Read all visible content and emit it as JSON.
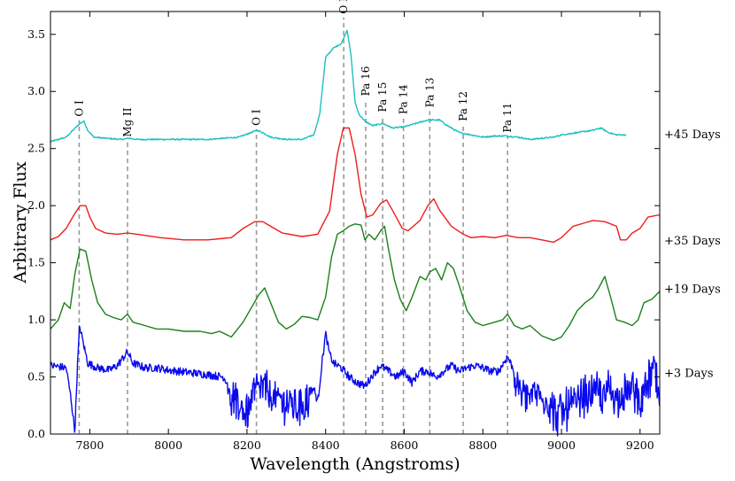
{
  "chart_data": {
    "type": "line",
    "xlabel": "Wavelength (Angstroms)",
    "ylabel": "Arbitrary Flux",
    "xlim": [
      7700,
      9250
    ],
    "ylim": [
      0.0,
      3.7
    ],
    "x_ticks": [
      7800,
      8000,
      8200,
      8400,
      8600,
      8800,
      9000,
      9200
    ],
    "y_ticks": [
      "0.0",
      "0.5",
      "1.0",
      "1.5",
      "2.0",
      "2.5",
      "3.0",
      "3.5"
    ],
    "line_markers": [
      {
        "label": "O I",
        "x": 7773,
        "label_y": 2.78
      },
      {
        "label": "Mg II",
        "x": 7896,
        "label_y": 2.6
      },
      {
        "label": "O I",
        "x": 8224,
        "label_y": 2.7
      },
      {
        "label": "O I",
        "x": 8446,
        "label_y": 3.68
      },
      {
        "label": "Pa 16",
        "x": 8502,
        "label_y": 2.96
      },
      {
        "label": "Pa 15",
        "x": 8545,
        "label_y": 2.82
      },
      {
        "label": "Pa 14",
        "x": 8598,
        "label_y": 2.8
      },
      {
        "label": "Pa 13",
        "x": 8665,
        "label_y": 2.86
      },
      {
        "label": "Pa 12",
        "x": 8750,
        "label_y": 2.74
      },
      {
        "label": "Pa 11",
        "x": 8863,
        "label_y": 2.64
      }
    ],
    "series": [
      {
        "name": "+45 Days",
        "color": "#1ec0c0",
        "label_y": 2.62,
        "noise": 0.006,
        "x_end": 9165,
        "points": [
          [
            7700,
            2.56
          ],
          [
            7720,
            2.58
          ],
          [
            7740,
            2.6
          ],
          [
            7760,
            2.67
          ],
          [
            7775,
            2.72
          ],
          [
            7785,
            2.74
          ],
          [
            7795,
            2.66
          ],
          [
            7810,
            2.6
          ],
          [
            7840,
            2.59
          ],
          [
            7880,
            2.58
          ],
          [
            7900,
            2.59
          ],
          [
            7920,
            2.58
          ],
          [
            8000,
            2.58
          ],
          [
            8100,
            2.58
          ],
          [
            8180,
            2.6
          ],
          [
            8210,
            2.64
          ],
          [
            8225,
            2.66
          ],
          [
            8240,
            2.64
          ],
          [
            8260,
            2.6
          ],
          [
            8300,
            2.58
          ],
          [
            8340,
            2.58
          ],
          [
            8370,
            2.62
          ],
          [
            8385,
            2.8
          ],
          [
            8400,
            3.3
          ],
          [
            8420,
            3.38
          ],
          [
            8440,
            3.42
          ],
          [
            8455,
            3.54
          ],
          [
            8465,
            3.3
          ],
          [
            8475,
            2.9
          ],
          [
            8485,
            2.8
          ],
          [
            8500,
            2.74
          ],
          [
            8520,
            2.7
          ],
          [
            8545,
            2.72
          ],
          [
            8570,
            2.68
          ],
          [
            8600,
            2.69
          ],
          [
            8630,
            2.72
          ],
          [
            8660,
            2.75
          ],
          [
            8690,
            2.75
          ],
          [
            8710,
            2.7
          ],
          [
            8740,
            2.64
          ],
          [
            8770,
            2.62
          ],
          [
            8800,
            2.6
          ],
          [
            8830,
            2.61
          ],
          [
            8860,
            2.61
          ],
          [
            8890,
            2.6
          ],
          [
            8920,
            2.58
          ],
          [
            8950,
            2.59
          ],
          [
            8980,
            2.6
          ],
          [
            9000,
            2.62
          ],
          [
            9040,
            2.64
          ],
          [
            9080,
            2.66
          ],
          [
            9100,
            2.68
          ],
          [
            9120,
            2.64
          ],
          [
            9140,
            2.62
          ],
          [
            9165,
            2.62
          ]
        ]
      },
      {
        "name": "+35 Days",
        "color": "#ee1c1c",
        "label_y": 1.69,
        "noise": 0,
        "x_end": 9250,
        "points": [
          [
            7700,
            1.7
          ],
          [
            7720,
            1.73
          ],
          [
            7740,
            1.8
          ],
          [
            7760,
            1.92
          ],
          [
            7775,
            2.0
          ],
          [
            7790,
            2.0
          ],
          [
            7800,
            1.9
          ],
          [
            7815,
            1.8
          ],
          [
            7840,
            1.76
          ],
          [
            7870,
            1.75
          ],
          [
            7896,
            1.76
          ],
          [
            7920,
            1.75
          ],
          [
            7980,
            1.72
          ],
          [
            8040,
            1.7
          ],
          [
            8100,
            1.7
          ],
          [
            8160,
            1.72
          ],
          [
            8190,
            1.8
          ],
          [
            8220,
            1.86
          ],
          [
            8240,
            1.86
          ],
          [
            8260,
            1.82
          ],
          [
            8290,
            1.76
          ],
          [
            8340,
            1.73
          ],
          [
            8380,
            1.75
          ],
          [
            8410,
            1.95
          ],
          [
            8430,
            2.45
          ],
          [
            8445,
            2.68
          ],
          [
            8460,
            2.68
          ],
          [
            8475,
            2.45
          ],
          [
            8490,
            2.1
          ],
          [
            8505,
            1.9
          ],
          [
            8520,
            1.92
          ],
          [
            8540,
            2.02
          ],
          [
            8555,
            2.05
          ],
          [
            8570,
            1.96
          ],
          [
            8595,
            1.8
          ],
          [
            8610,
            1.78
          ],
          [
            8640,
            1.87
          ],
          [
            8660,
            2.0
          ],
          [
            8675,
            2.06
          ],
          [
            8690,
            1.96
          ],
          [
            8720,
            1.82
          ],
          [
            8750,
            1.75
          ],
          [
            8770,
            1.72
          ],
          [
            8800,
            1.73
          ],
          [
            8830,
            1.72
          ],
          [
            8860,
            1.74
          ],
          [
            8890,
            1.72
          ],
          [
            8920,
            1.72
          ],
          [
            8950,
            1.7
          ],
          [
            8980,
            1.68
          ],
          [
            9000,
            1.72
          ],
          [
            9030,
            1.82
          ],
          [
            9060,
            1.85
          ],
          [
            9080,
            1.87
          ],
          [
            9110,
            1.86
          ],
          [
            9140,
            1.82
          ],
          [
            9150,
            1.7
          ],
          [
            9165,
            1.7
          ],
          [
            9180,
            1.76
          ],
          [
            9200,
            1.8
          ],
          [
            9220,
            1.9
          ],
          [
            9250,
            1.92
          ]
        ]
      },
      {
        "name": "+19 Days",
        "color": "#1a801a",
        "label_y": 1.27,
        "noise": 0,
        "x_end": 9250,
        "points": [
          [
            7700,
            0.92
          ],
          [
            7720,
            1.0
          ],
          [
            7735,
            1.15
          ],
          [
            7750,
            1.1
          ],
          [
            7762,
            1.4
          ],
          [
            7775,
            1.62
          ],
          [
            7790,
            1.6
          ],
          [
            7805,
            1.35
          ],
          [
            7820,
            1.15
          ],
          [
            7840,
            1.05
          ],
          [
            7860,
            1.02
          ],
          [
            7880,
            1.0
          ],
          [
            7896,
            1.05
          ],
          [
            7910,
            0.98
          ],
          [
            7940,
            0.95
          ],
          [
            7970,
            0.92
          ],
          [
            8000,
            0.92
          ],
          [
            8040,
            0.9
          ],
          [
            8080,
            0.9
          ],
          [
            8110,
            0.88
          ],
          [
            8130,
            0.9
          ],
          [
            8160,
            0.85
          ],
          [
            8190,
            0.98
          ],
          [
            8210,
            1.1
          ],
          [
            8230,
            1.22
          ],
          [
            8245,
            1.28
          ],
          [
            8260,
            1.15
          ],
          [
            8280,
            0.98
          ],
          [
            8300,
            0.92
          ],
          [
            8320,
            0.96
          ],
          [
            8340,
            1.03
          ],
          [
            8360,
            1.02
          ],
          [
            8380,
            1.0
          ],
          [
            8400,
            1.2
          ],
          [
            8415,
            1.55
          ],
          [
            8430,
            1.75
          ],
          [
            8445,
            1.78
          ],
          [
            8460,
            1.82
          ],
          [
            8475,
            1.84
          ],
          [
            8490,
            1.83
          ],
          [
            8500,
            1.7
          ],
          [
            8510,
            1.75
          ],
          [
            8525,
            1.7
          ],
          [
            8540,
            1.78
          ],
          [
            8550,
            1.82
          ],
          [
            8560,
            1.62
          ],
          [
            8575,
            1.35
          ],
          [
            8590,
            1.18
          ],
          [
            8605,
            1.08
          ],
          [
            8620,
            1.2
          ],
          [
            8640,
            1.38
          ],
          [
            8655,
            1.35
          ],
          [
            8665,
            1.42
          ],
          [
            8680,
            1.45
          ],
          [
            8695,
            1.35
          ],
          [
            8710,
            1.5
          ],
          [
            8725,
            1.45
          ],
          [
            8740,
            1.3
          ],
          [
            8760,
            1.08
          ],
          [
            8780,
            0.98
          ],
          [
            8800,
            0.95
          ],
          [
            8830,
            0.98
          ],
          [
            8850,
            1.0
          ],
          [
            8863,
            1.05
          ],
          [
            8880,
            0.95
          ],
          [
            8900,
            0.92
          ],
          [
            8920,
            0.95
          ],
          [
            8950,
            0.86
          ],
          [
            8980,
            0.82
          ],
          [
            9000,
            0.85
          ],
          [
            9020,
            0.95
          ],
          [
            9040,
            1.08
          ],
          [
            9060,
            1.15
          ],
          [
            9080,
            1.2
          ],
          [
            9095,
            1.28
          ],
          [
            9110,
            1.38
          ],
          [
            9125,
            1.2
          ],
          [
            9140,
            1.0
          ],
          [
            9160,
            0.98
          ],
          [
            9180,
            0.95
          ],
          [
            9195,
            1.0
          ],
          [
            9210,
            1.15
          ],
          [
            9230,
            1.18
          ],
          [
            9250,
            1.25
          ]
        ]
      },
      {
        "name": "+3 Days",
        "color": "#0a0aee",
        "label_y": 0.53,
        "noise": 0.035,
        "x_end": 9250,
        "points": [
          [
            7700,
            0.6
          ],
          [
            7740,
            0.58
          ],
          [
            7752,
            0.32
          ],
          [
            7762,
            0.02
          ],
          [
            7768,
            0.55
          ],
          [
            7774,
            0.95
          ],
          [
            7782,
            0.82
          ],
          [
            7795,
            0.62
          ],
          [
            7820,
            0.58
          ],
          [
            7850,
            0.56
          ],
          [
            7870,
            0.6
          ],
          [
            7896,
            0.72
          ],
          [
            7910,
            0.62
          ],
          [
            7940,
            0.58
          ],
          [
            7970,
            0.58
          ],
          [
            8000,
            0.56
          ],
          [
            8050,
            0.54
          ],
          [
            8100,
            0.52
          ],
          [
            8140,
            0.5
          ],
          [
            8160,
            0.4
          ],
          [
            8180,
            0.3
          ],
          [
            8200,
            0.25
          ],
          [
            8220,
            0.45
          ],
          [
            8240,
            0.48
          ],
          [
            8260,
            0.4
          ],
          [
            8280,
            0.35
          ],
          [
            8300,
            0.35
          ],
          [
            8320,
            0.3
          ],
          [
            8350,
            0.35
          ],
          [
            8370,
            0.4
          ],
          [
            8380,
            0.28
          ],
          [
            8390,
            0.6
          ],
          [
            8400,
            0.88
          ],
          [
            8410,
            0.7
          ],
          [
            8420,
            0.62
          ],
          [
            8440,
            0.58
          ],
          [
            8460,
            0.5
          ],
          [
            8480,
            0.45
          ],
          [
            8500,
            0.42
          ],
          [
            8520,
            0.52
          ],
          [
            8540,
            0.6
          ],
          [
            8560,
            0.55
          ],
          [
            8580,
            0.5
          ],
          [
            8600,
            0.55
          ],
          [
            8620,
            0.45
          ],
          [
            8640,
            0.55
          ],
          [
            8660,
            0.55
          ],
          [
            8680,
            0.5
          ],
          [
            8700,
            0.55
          ],
          [
            8720,
            0.6
          ],
          [
            8740,
            0.55
          ],
          [
            8760,
            0.58
          ],
          [
            8780,
            0.6
          ],
          [
            8800,
            0.58
          ],
          [
            8820,
            0.55
          ],
          [
            8840,
            0.55
          ],
          [
            8863,
            0.68
          ],
          [
            8880,
            0.55
          ],
          [
            8900,
            0.45
          ],
          [
            8920,
            0.4
          ],
          [
            8940,
            0.42
          ],
          [
            8960,
            0.4
          ],
          [
            8980,
            0.25
          ],
          [
            9000,
            0.25
          ],
          [
            9020,
            0.3
          ],
          [
            9040,
            0.35
          ],
          [
            9060,
            0.4
          ],
          [
            9080,
            0.45
          ],
          [
            9100,
            0.4
          ],
          [
            9120,
            0.45
          ],
          [
            9140,
            0.4
          ],
          [
            9160,
            0.45
          ],
          [
            9180,
            0.45
          ],
          [
            9200,
            0.4
          ],
          [
            9220,
            0.5
          ],
          [
            9235,
            0.65
          ],
          [
            9250,
            0.3
          ]
        ]
      }
    ]
  }
}
